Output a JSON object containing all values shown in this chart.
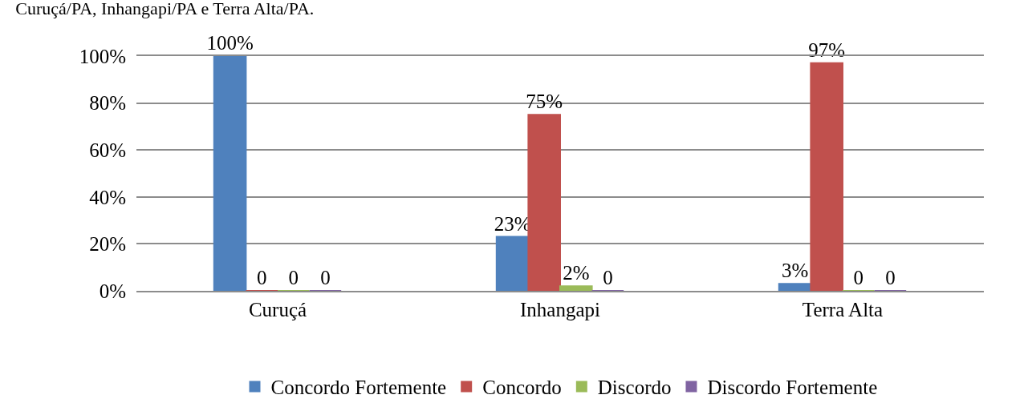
{
  "chart_data": {
    "type": "bar",
    "title": "Curuçá/PA, Inhangapi/PA e Terra Alta/PA.",
    "categories": [
      "Curuçá",
      "Inhangapi",
      "Terra Alta"
    ],
    "series": [
      {
        "name": "Concordo Fortemente",
        "color": "#4f81bd",
        "values": [
          100,
          23,
          3
        ],
        "value_labels": [
          "100%",
          "23%",
          "3%"
        ]
      },
      {
        "name": "Concordo",
        "color": "#c0504d",
        "values": [
          0,
          75,
          97
        ],
        "value_labels": [
          "0",
          "75%",
          "97%"
        ]
      },
      {
        "name": "Discordo",
        "color": "#9bbb59",
        "values": [
          0,
          2,
          0
        ],
        "value_labels": [
          "0",
          "2%",
          "0"
        ]
      },
      {
        "name": "Discordo Fortemente",
        "color": "#8064a2",
        "values": [
          0,
          0,
          0
        ],
        "value_labels": [
          "0",
          "0",
          "0"
        ]
      }
    ],
    "ylim": [
      0,
      100
    ],
    "yticks": [
      {
        "value": 0,
        "label": "0%"
      },
      {
        "value": 20,
        "label": "20%"
      },
      {
        "value": 40,
        "label": "40%"
      },
      {
        "value": 60,
        "label": "60%"
      },
      {
        "value": 80,
        "label": "80%"
      },
      {
        "value": 100,
        "label": "100%"
      }
    ],
    "grid": "y",
    "legend": "bottom"
  }
}
